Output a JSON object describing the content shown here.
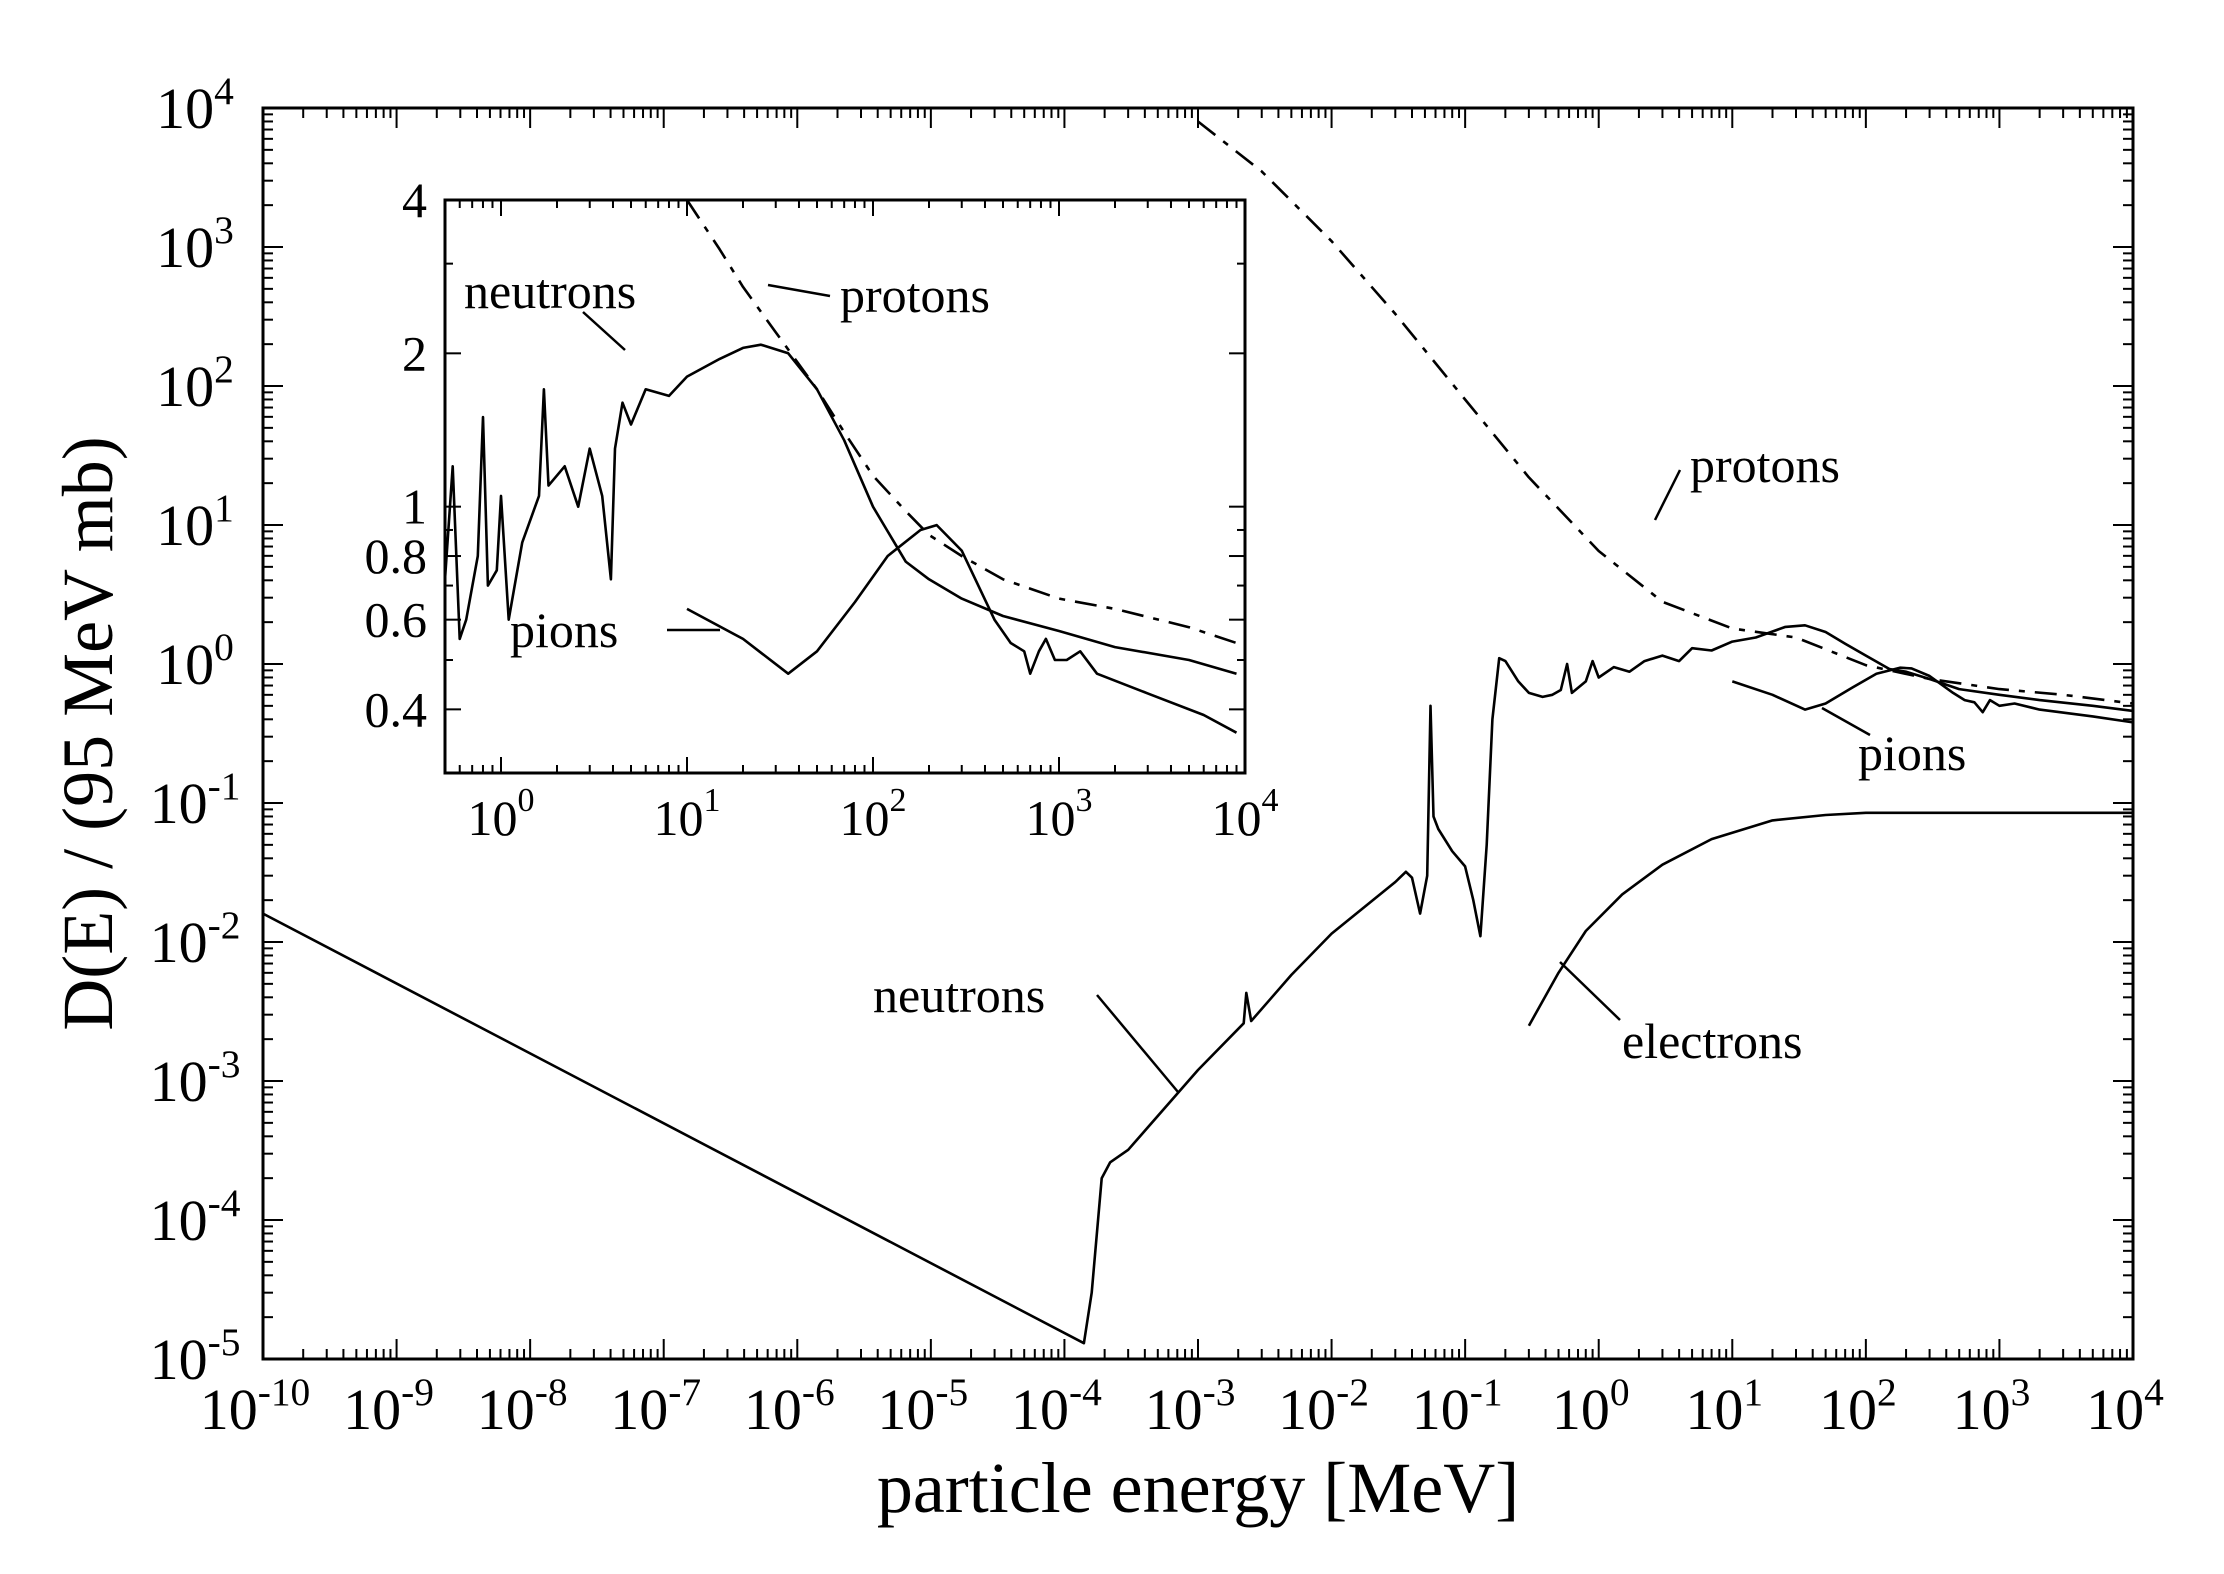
{
  "chart_data": [
    {
      "id": "main",
      "type": "line",
      "xlabel": "particle energy [MeV]",
      "ylabel": "D(E) / (95 MeV mb)",
      "xscale": "log",
      "yscale": "log",
      "xlim": [
        1e-10,
        10000.0
      ],
      "ylim": [
        1e-05,
        10000.0
      ],
      "grid": false,
      "x_ticks": [
        {
          "base": "10",
          "exp": "-10"
        },
        {
          "base": "10",
          "exp": "-9"
        },
        {
          "base": "10",
          "exp": "-8"
        },
        {
          "base": "10",
          "exp": "-7"
        },
        {
          "base": "10",
          "exp": "-6"
        },
        {
          "base": "10",
          "exp": "-5"
        },
        {
          "base": "10",
          "exp": "-4"
        },
        {
          "base": "10",
          "exp": "-3"
        },
        {
          "base": "10",
          "exp": "-2"
        },
        {
          "base": "10",
          "exp": "-1"
        },
        {
          "base": "10",
          "exp": "0"
        },
        {
          "base": "10",
          "exp": "1"
        },
        {
          "base": "10",
          "exp": "2"
        },
        {
          "base": "10",
          "exp": "3"
        },
        {
          "base": "10",
          "exp": "4"
        }
      ],
      "y_ticks": [
        {
          "base": "10",
          "exp": "-5"
        },
        {
          "base": "10",
          "exp": "-4"
        },
        {
          "base": "10",
          "exp": "-3"
        },
        {
          "base": "10",
          "exp": "-2"
        },
        {
          "base": "10",
          "exp": "-1"
        },
        {
          "base": "10",
          "exp": "0"
        },
        {
          "base": "10",
          "exp": "1"
        },
        {
          "base": "10",
          "exp": "2"
        },
        {
          "base": "10",
          "exp": "3"
        },
        {
          "base": "10",
          "exp": "4"
        }
      ],
      "series": [
        {
          "name": "neutrons",
          "style": "solid",
          "points": [
            [
              1e-10,
              0.016
            ],
            [
              0.00014,
              1.3e-05
            ],
            [
              0.00016,
              3e-05
            ],
            [
              0.00019,
              0.0002
            ],
            [
              0.00022,
              0.00026
            ],
            [
              0.0003,
              0.00032
            ],
            [
              0.001,
              0.0012
            ],
            [
              0.0022,
              0.0026
            ],
            [
              0.0023,
              0.0043
            ],
            [
              0.0025,
              0.0027
            ],
            [
              0.005,
              0.0058
            ],
            [
              0.01,
              0.0115
            ],
            [
              0.03,
              0.027
            ],
            [
              0.036,
              0.032
            ],
            [
              0.04,
              0.029
            ],
            [
              0.046,
              0.016
            ],
            [
              0.052,
              0.03
            ],
            [
              0.055,
              0.5
            ],
            [
              0.058,
              0.08
            ],
            [
              0.063,
              0.065
            ],
            [
              0.08,
              0.045
            ],
            [
              0.1,
              0.035
            ],
            [
              0.115,
              0.02
            ],
            [
              0.13,
              0.011
            ],
            [
              0.145,
              0.05
            ],
            [
              0.16,
              0.4
            ],
            [
              0.18,
              1.1
            ],
            [
              0.2,
              1.05
            ],
            [
              0.25,
              0.75
            ],
            [
              0.3,
              0.62
            ],
            [
              0.38,
              0.58
            ],
            [
              0.45,
              0.6
            ],
            [
              0.52,
              0.65
            ],
            [
              0.58,
              1.0
            ],
            [
              0.63,
              0.62
            ],
            [
              0.8,
              0.75
            ],
            [
              0.9,
              1.05
            ],
            [
              1.0,
              0.8
            ],
            [
              1.3,
              0.95
            ],
            [
              1.7,
              0.88
            ],
            [
              2.2,
              1.05
            ],
            [
              3,
              1.15
            ],
            [
              4,
              1.05
            ],
            [
              5,
              1.3
            ],
            [
              7,
              1.25
            ],
            [
              10,
              1.45
            ],
            [
              15,
              1.55
            ],
            [
              25,
              1.85
            ],
            [
              35,
              1.9
            ],
            [
              50,
              1.7
            ],
            [
              70,
              1.4
            ],
            [
              100,
              1.15
            ],
            [
              150,
              0.92
            ],
            [
              200,
              0.88
            ],
            [
              300,
              0.78
            ],
            [
              500,
              0.66
            ],
            [
              1000,
              0.6
            ],
            [
              2000,
              0.55
            ],
            [
              5000,
              0.5
            ],
            [
              10000.0,
              0.46
            ]
          ]
        },
        {
          "name": "protons",
          "style": "dashed",
          "points": [
            [
              0.001,
              8000
            ],
            [
              0.003,
              3500
            ],
            [
              0.01,
              1100
            ],
            [
              0.03,
              330
            ],
            [
              0.1,
              80
            ],
            [
              0.3,
              22
            ],
            [
              1,
              6.5
            ],
            [
              3,
              2.8
            ],
            [
              10,
              1.8
            ],
            [
              30,
              1.55
            ],
            [
              100,
              0.98
            ],
            [
              300,
              0.78
            ],
            [
              1000,
              0.66
            ],
            [
              3000,
              0.6
            ],
            [
              10000.0,
              0.52
            ]
          ]
        },
        {
          "name": "pions",
          "style": "solid",
          "points": [
            [
              10,
              0.75
            ],
            [
              20,
              0.6
            ],
            [
              35,
              0.47
            ],
            [
              50,
              0.52
            ],
            [
              80,
              0.68
            ],
            [
              120,
              0.85
            ],
            [
              180,
              0.94
            ],
            [
              220,
              0.93
            ],
            [
              300,
              0.82
            ],
            [
              450,
              0.62
            ],
            [
              550,
              0.55
            ],
            [
              650,
              0.53
            ],
            [
              750,
              0.45
            ],
            [
              850,
              0.55
            ],
            [
              1000,
              0.5
            ],
            [
              1300,
              0.52
            ],
            [
              2000,
              0.47
            ],
            [
              5000,
              0.42
            ],
            [
              10000.0,
              0.38
            ]
          ]
        },
        {
          "name": "electrons",
          "style": "solid",
          "points": [
            [
              0.3,
              0.0025
            ],
            [
              0.5,
              0.006
            ],
            [
              0.8,
              0.012
            ],
            [
              1.5,
              0.022
            ],
            [
              3,
              0.036
            ],
            [
              7,
              0.055
            ],
            [
              20,
              0.075
            ],
            [
              50,
              0.082
            ],
            [
              100,
              0.085
            ],
            [
              10000.0,
              0.085
            ]
          ]
        }
      ],
      "annotations": [
        "neutrons",
        "protons",
        "pions",
        "electrons"
      ]
    },
    {
      "id": "inset",
      "type": "line",
      "xscale": "log",
      "yscale": "log",
      "xlim": [
        0.5,
        10000.0
      ],
      "ylim": [
        0.3,
        4
      ],
      "grid": false,
      "x_ticks": [
        {
          "base": "10",
          "exp": "0"
        },
        {
          "base": "10",
          "exp": "1"
        },
        {
          "base": "10",
          "exp": "2"
        },
        {
          "base": "10",
          "exp": "3"
        },
        {
          "base": "10",
          "exp": "4"
        }
      ],
      "y_ticks": [
        "0.4",
        "0.6",
        "0.8",
        "1",
        "2",
        "4"
      ],
      "series": [
        {
          "name": "neutrons",
          "style": "solid",
          "points": [
            [
              0.5,
              0.72
            ],
            [
              0.55,
              1.2
            ],
            [
              0.6,
              0.55
            ],
            [
              0.65,
              0.6
            ],
            [
              0.75,
              0.8
            ],
            [
              0.8,
              1.5
            ],
            [
              0.85,
              0.7
            ],
            [
              0.95,
              0.75
            ],
            [
              1.0,
              1.05
            ],
            [
              1.1,
              0.6
            ],
            [
              1.3,
              0.85
            ],
            [
              1.6,
              1.05
            ],
            [
              1.7,
              1.7
            ],
            [
              1.8,
              1.1
            ],
            [
              2.2,
              1.2
            ],
            [
              2.6,
              1.0
            ],
            [
              3.0,
              1.3
            ],
            [
              3.5,
              1.05
            ],
            [
              3.9,
              0.72
            ],
            [
              4.1,
              1.3
            ],
            [
              4.5,
              1.6
            ],
            [
              5,
              1.45
            ],
            [
              6,
              1.7
            ],
            [
              8,
              1.65
            ],
            [
              10,
              1.8
            ],
            [
              15,
              1.95
            ],
            [
              20,
              2.05
            ],
            [
              25,
              2.08
            ],
            [
              35,
              2.0
            ],
            [
              50,
              1.7
            ],
            [
              70,
              1.35
            ],
            [
              100,
              1.0
            ],
            [
              150,
              0.78
            ],
            [
              200,
              0.72
            ],
            [
              300,
              0.66
            ],
            [
              500,
              0.61
            ],
            [
              1000,
              0.57
            ],
            [
              2000,
              0.53
            ],
            [
              5000,
              0.5
            ],
            [
              9000,
              0.47
            ]
          ]
        },
        {
          "name": "protons",
          "style": "dashed",
          "points": [
            [
              10,
              4.0
            ],
            [
              15,
              3.2
            ],
            [
              20,
              2.7
            ],
            [
              30,
              2.2
            ],
            [
              50,
              1.7
            ],
            [
              70,
              1.4
            ],
            [
              100,
              1.15
            ],
            [
              150,
              0.98
            ],
            [
              200,
              0.88
            ],
            [
              300,
              0.8
            ],
            [
              500,
              0.72
            ],
            [
              1000,
              0.66
            ],
            [
              2000,
              0.63
            ],
            [
              5000,
              0.58
            ],
            [
              9000,
              0.54
            ]
          ]
        },
        {
          "name": "pions",
          "style": "solid",
          "points": [
            [
              10,
              0.63
            ],
            [
              20,
              0.55
            ],
            [
              35,
              0.47
            ],
            [
              50,
              0.52
            ],
            [
              80,
              0.65
            ],
            [
              120,
              0.8
            ],
            [
              180,
              0.9
            ],
            [
              220,
              0.92
            ],
            [
              300,
              0.82
            ],
            [
              450,
              0.6
            ],
            [
              550,
              0.54
            ],
            [
              650,
              0.52
            ],
            [
              700,
              0.47
            ],
            [
              780,
              0.52
            ],
            [
              850,
              0.55
            ],
            [
              950,
              0.5
            ],
            [
              1100,
              0.5
            ],
            [
              1300,
              0.52
            ],
            [
              1600,
              0.47
            ],
            [
              3000,
              0.43
            ],
            [
              6000,
              0.39
            ],
            [
              9000,
              0.36
            ]
          ]
        }
      ],
      "annotations": [
        "neutrons",
        "protons",
        "pions"
      ]
    }
  ]
}
